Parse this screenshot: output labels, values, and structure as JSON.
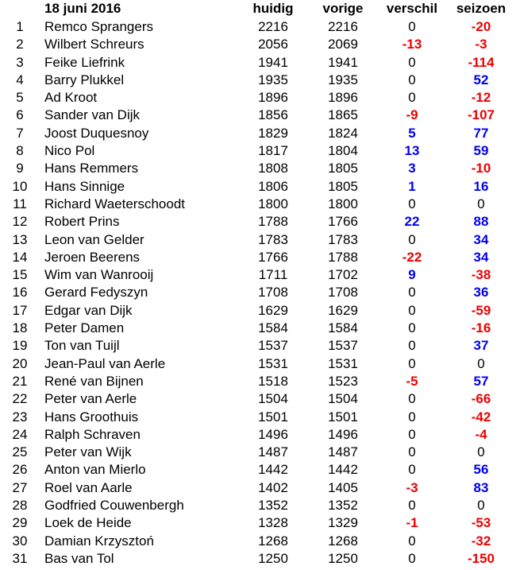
{
  "header": {
    "date": "18 juni 2016",
    "huidig": "huidig",
    "vorige": "vorige",
    "verschil": "verschil",
    "seizoen": "seizoen"
  },
  "colors": {
    "positive": "#0000ee",
    "negative": "#ee0000",
    "neutral": "#000000"
  },
  "rows": [
    {
      "rank": "1",
      "name": "Remco Sprangers",
      "huidig": "2216",
      "vorige": "2216",
      "verschil": "0",
      "seizoen": "-20"
    },
    {
      "rank": "2",
      "name": "Wilbert Schreurs",
      "huidig": "2056",
      "vorige": "2069",
      "verschil": "-13",
      "seizoen": "-3"
    },
    {
      "rank": "3",
      "name": "Feike Liefrink",
      "huidig": "1941",
      "vorige": "1941",
      "verschil": "0",
      "seizoen": "-114"
    },
    {
      "rank": "4",
      "name": "Barry Plukkel",
      "huidig": "1935",
      "vorige": "1935",
      "verschil": "0",
      "seizoen": "52"
    },
    {
      "rank": "5",
      "name": "Ad Kroot",
      "huidig": "1896",
      "vorige": "1896",
      "verschil": "0",
      "seizoen": "-12"
    },
    {
      "rank": "6",
      "name": "Sander van Dijk",
      "huidig": "1856",
      "vorige": "1865",
      "verschil": "-9",
      "seizoen": "-107"
    },
    {
      "rank": "7",
      "name": "Joost Duquesnoy",
      "huidig": "1829",
      "vorige": "1824",
      "verschil": "5",
      "seizoen": "77"
    },
    {
      "rank": "8",
      "name": "Nico Pol",
      "huidig": "1817",
      "vorige": "1804",
      "verschil": "13",
      "seizoen": "59"
    },
    {
      "rank": "9",
      "name": "Hans Remmers",
      "huidig": "1808",
      "vorige": "1805",
      "verschil": "3",
      "seizoen": "-10"
    },
    {
      "rank": "10",
      "name": "Hans Sinnige",
      "huidig": "1806",
      "vorige": "1805",
      "verschil": "1",
      "seizoen": "16"
    },
    {
      "rank": "11",
      "name": "Richard Waeterschoodt",
      "huidig": "1800",
      "vorige": "1800",
      "verschil": "0",
      "seizoen": "0"
    },
    {
      "rank": "12",
      "name": "Robert Prins",
      "huidig": "1788",
      "vorige": "1766",
      "verschil": "22",
      "seizoen": "88"
    },
    {
      "rank": "13",
      "name": "Leon van Gelder",
      "huidig": "1783",
      "vorige": "1783",
      "verschil": "0",
      "seizoen": "34"
    },
    {
      "rank": "14",
      "name": "Jeroen Beerens",
      "huidig": "1766",
      "vorige": "1788",
      "verschil": "-22",
      "seizoen": "34"
    },
    {
      "rank": "15",
      "name": "Wim van Wanrooij",
      "huidig": "1711",
      "vorige": "1702",
      "verschil": "9",
      "seizoen": "-38"
    },
    {
      "rank": "16",
      "name": "Gerard Fedyszyn",
      "huidig": "1708",
      "vorige": "1708",
      "verschil": "0",
      "seizoen": "36"
    },
    {
      "rank": "17",
      "name": "Edgar van Dijk",
      "huidig": "1629",
      "vorige": "1629",
      "verschil": "0",
      "seizoen": "-59"
    },
    {
      "rank": "18",
      "name": "Peter Damen",
      "huidig": "1584",
      "vorige": "1584",
      "verschil": "0",
      "seizoen": "-16"
    },
    {
      "rank": "19",
      "name": "Ton van Tuijl",
      "huidig": "1537",
      "vorige": "1537",
      "verschil": "0",
      "seizoen": "37"
    },
    {
      "rank": "20",
      "name": "Jean-Paul van Aerle",
      "huidig": "1531",
      "vorige": "1531",
      "verschil": "0",
      "seizoen": "0"
    },
    {
      "rank": "21",
      "name": "René van Bijnen",
      "huidig": "1518",
      "vorige": "1523",
      "verschil": "-5",
      "seizoen": "57"
    },
    {
      "rank": "22",
      "name": "Peter van Aerle",
      "huidig": "1504",
      "vorige": "1504",
      "verschil": "0",
      "seizoen": "-66"
    },
    {
      "rank": "23",
      "name": "Hans Groothuis",
      "huidig": "1501",
      "vorige": "1501",
      "verschil": "0",
      "seizoen": "-42"
    },
    {
      "rank": "24",
      "name": "Ralph Schraven",
      "huidig": "1496",
      "vorige": "1496",
      "verschil": "0",
      "seizoen": "-4"
    },
    {
      "rank": "25",
      "name": "Peter van Wijk",
      "huidig": "1487",
      "vorige": "1487",
      "verschil": "0",
      "seizoen": "0"
    },
    {
      "rank": "26",
      "name": "Anton van Mierlo",
      "huidig": "1442",
      "vorige": "1442",
      "verschil": "0",
      "seizoen": "56"
    },
    {
      "rank": "27",
      "name": "Roel van Aarle",
      "huidig": "1402",
      "vorige": "1405",
      "verschil": "-3",
      "seizoen": "83"
    },
    {
      "rank": "28",
      "name": "Godfried Couwenbergh",
      "huidig": "1352",
      "vorige": "1352",
      "verschil": "0",
      "seizoen": "0"
    },
    {
      "rank": "29",
      "name": "Loek de Heide",
      "huidig": "1328",
      "vorige": "1329",
      "verschil": "-1",
      "seizoen": "-53"
    },
    {
      "rank": "30",
      "name": "Damian Krzysztoń",
      "huidig": "1268",
      "vorige": "1268",
      "verschil": "0",
      "seizoen": "-32"
    },
    {
      "rank": "31",
      "name": "Bas van Tol",
      "huidig": "1250",
      "vorige": "1250",
      "verschil": "0",
      "seizoen": "-150"
    }
  ]
}
